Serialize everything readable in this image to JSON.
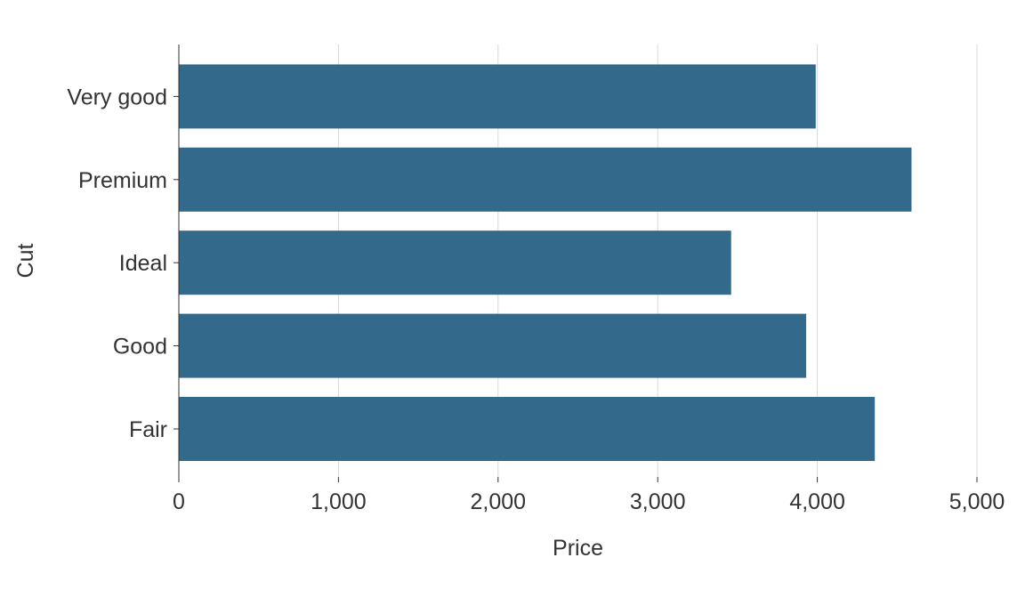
{
  "colors": {
    "bar": "#33698b",
    "grid": "#d9d9d9",
    "axis": "#333333",
    "text": "#333333"
  },
  "chart_data": {
    "type": "bar",
    "orientation": "horizontal",
    "categories": [
      "Fair",
      "Good",
      "Ideal",
      "Premium",
      "Very good"
    ],
    "values": [
      4360,
      3930,
      3460,
      4590,
      3990
    ],
    "xlabel": "Price",
    "ylabel": "Cut",
    "xlim": [
      0,
      5000
    ],
    "xticks": [
      0,
      1000,
      2000,
      3000,
      4000,
      5000
    ],
    "xtick_labels": [
      "0",
      "1,000",
      "2,000",
      "3,000",
      "4,000",
      "5,000"
    ],
    "grid": "vertical major gridlines",
    "legend": "none"
  }
}
